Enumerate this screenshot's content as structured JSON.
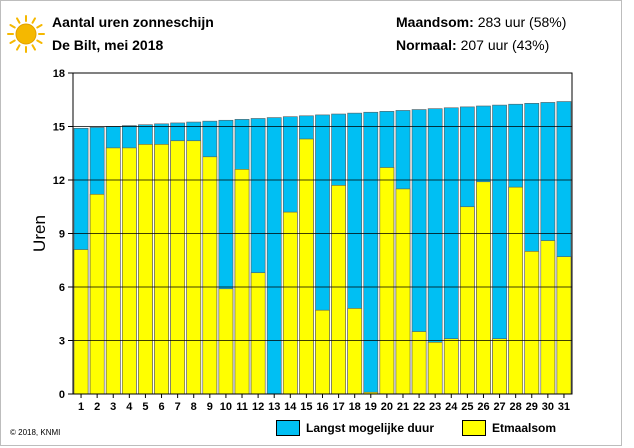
{
  "header": {
    "title": "Aantal uren zonneschijn",
    "subtitle": "De Bilt, mei 2018",
    "stat1_label": "Maandsom:",
    "stat1_value": "283 uur (58%)",
    "stat2_label": "Normaal:",
    "stat2_value": "207 uur (43%)"
  },
  "copyright": "© 2018, KNMI",
  "icon": "sun-icon",
  "colors": {
    "max_duration": "#00bff3",
    "daily_sum": "#ffff00",
    "sun": "#f5b800"
  },
  "chart_data": {
    "type": "bar",
    "ylabel": "Uren",
    "xlabel": "",
    "ylim": [
      0,
      18
    ],
    "yticks": [
      0,
      3,
      6,
      9,
      12,
      15,
      18
    ],
    "grid": true,
    "legend_position": "bottom-right",
    "categories": [
      "1",
      "2",
      "3",
      "4",
      "5",
      "6",
      "7",
      "8",
      "9",
      "10",
      "11",
      "12",
      "13",
      "14",
      "15",
      "16",
      "17",
      "18",
      "19",
      "20",
      "21",
      "22",
      "23",
      "24",
      "25",
      "26",
      "27",
      "28",
      "29",
      "30",
      "31"
    ],
    "series": [
      {
        "name": "Langst mogelijke duur",
        "values": [
          14.9,
          14.95,
          15.0,
          15.05,
          15.1,
          15.15,
          15.2,
          15.25,
          15.3,
          15.35,
          15.4,
          15.45,
          15.5,
          15.55,
          15.6,
          15.65,
          15.7,
          15.75,
          15.8,
          15.85,
          15.9,
          15.95,
          16.0,
          16.05,
          16.1,
          16.15,
          16.2,
          16.25,
          16.3,
          16.35,
          16.4
        ]
      },
      {
        "name": "Etmaalsom",
        "values": [
          8.1,
          11.2,
          13.8,
          13.8,
          14.0,
          14.0,
          14.2,
          14.2,
          13.3,
          5.9,
          12.6,
          6.8,
          0.0,
          10.2,
          14.3,
          4.7,
          11.7,
          4.8,
          0.1,
          12.7,
          11.5,
          3.5,
          2.9,
          3.1,
          10.5,
          11.9,
          3.1,
          11.6,
          8.0,
          8.6,
          7.7
        ]
      }
    ]
  }
}
